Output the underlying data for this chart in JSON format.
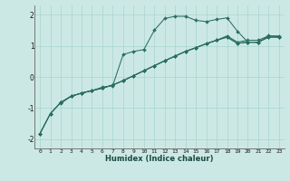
{
  "xlabel": "Humidex (Indice chaleur)",
  "bg_color": "#cce8e4",
  "grid_color": "#a8d4ce",
  "line_color": "#2a6e62",
  "xlim": [
    -0.5,
    23.5
  ],
  "ylim": [
    -2.3,
    2.3
  ],
  "xticks": [
    0,
    1,
    2,
    3,
    4,
    5,
    6,
    7,
    8,
    9,
    10,
    11,
    12,
    13,
    14,
    15,
    16,
    17,
    18,
    19,
    20,
    21,
    22,
    23
  ],
  "yticks": [
    -2,
    -1,
    0,
    1,
    2
  ],
  "series": [
    [
      null,
      null,
      -0.85,
      -0.62,
      -0.52,
      -0.44,
      -0.33,
      -0.28,
      0.72,
      0.82,
      0.88,
      1.5,
      1.88,
      1.95,
      1.95,
      1.82,
      1.78,
      1.85,
      1.9,
      1.47,
      1.12,
      1.1,
      1.33,
      1.28
    ],
    [
      -1.82,
      -1.18,
      -0.82,
      -0.62,
      -0.52,
      -0.44,
      -0.36,
      -0.26,
      -0.12,
      0.04,
      0.2,
      0.36,
      0.52,
      0.67,
      0.82,
      0.94,
      1.07,
      1.18,
      1.32,
      1.12,
      1.18,
      1.18,
      1.32,
      1.32
    ],
    [
      -1.82,
      -1.18,
      -0.82,
      -0.62,
      -0.52,
      -0.44,
      -0.36,
      -0.26,
      -0.12,
      0.04,
      0.2,
      0.36,
      0.52,
      0.67,
      0.82,
      0.94,
      1.07,
      1.18,
      1.28,
      1.08,
      1.12,
      1.12,
      1.28,
      1.28
    ],
    [
      -1.82,
      -1.18,
      -0.82,
      -0.62,
      -0.52,
      -0.44,
      -0.36,
      -0.26,
      -0.12,
      0.04,
      0.2,
      0.36,
      0.52,
      0.67,
      0.82,
      0.94,
      1.07,
      1.18,
      1.28,
      1.08,
      1.12,
      1.12,
      1.28,
      1.28
    ]
  ]
}
